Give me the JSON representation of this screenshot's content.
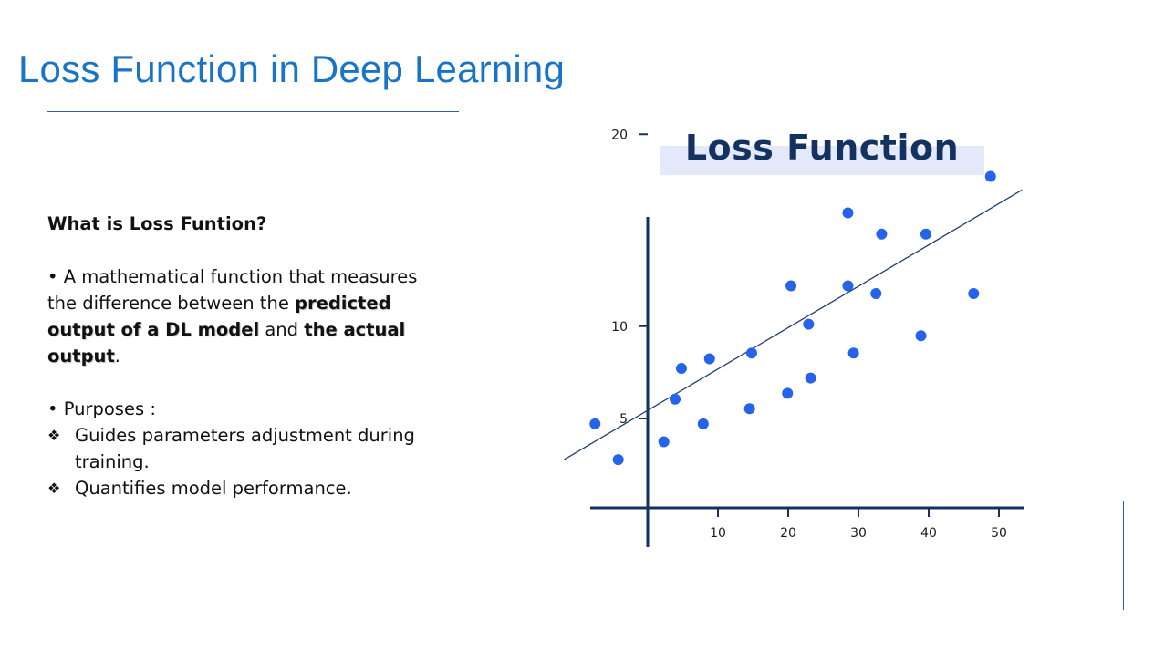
{
  "slide": {
    "title": "Loss Function in Deep Learning"
  },
  "content": {
    "heading": "What is Loss Funtion?",
    "definition": {
      "bullet": "•",
      "part1": " A mathematical function that measures the difference between the ",
      "highlight1": "predicted output of a DL model",
      "part2": " and ",
      "highlight2": "the actual output",
      "part3": "."
    },
    "purposes_label": "• Purposes :",
    "purposes": [
      {
        "marker": "❖",
        "text": " Guides parameters adjustment during training."
      },
      {
        "marker": "❖",
        "text": "Quantifies model performance."
      }
    ]
  },
  "chart_data": {
    "type": "scatter",
    "title": "Loss Function",
    "xlabel": "",
    "ylabel": "",
    "xticks": [
      10,
      20,
      30,
      40,
      50
    ],
    "yticks": [
      5,
      10,
      20
    ],
    "colors": {
      "points": "#2563eb",
      "axes": "#13325f",
      "line": "#1f3f6e"
    },
    "points": [
      {
        "x": -7.5,
        "y": 4.7
      },
      {
        "x": -4.2,
        "y": 2.7
      },
      {
        "x": 2.3,
        "y": 3.7
      },
      {
        "x": 3.9,
        "y": 6.2
      },
      {
        "x": 4.8,
        "y": 7.8
      },
      {
        "x": 8.8,
        "y": 8.3
      },
      {
        "x": 7.9,
        "y": 4.7
      },
      {
        "x": 14.5,
        "y": 5.7
      },
      {
        "x": 14.8,
        "y": 8.6
      },
      {
        "x": 19.9,
        "y": 6.5
      },
      {
        "x": 20.4,
        "y": 12.1
      },
      {
        "x": 22.9,
        "y": 10.1
      },
      {
        "x": 23.2,
        "y": 7.3
      },
      {
        "x": 28.5,
        "y": 12.1
      },
      {
        "x": 28.5,
        "y": 15.9
      },
      {
        "x": 29.3,
        "y": 8.6
      },
      {
        "x": 32.5,
        "y": 11.7
      },
      {
        "x": 33.3,
        "y": 14.8
      },
      {
        "x": 38.9,
        "y": 9.5
      },
      {
        "x": 39.6,
        "y": 14.8
      },
      {
        "x": 46.4,
        "y": 11.7
      },
      {
        "x": 48.8,
        "y": 17.8
      }
    ],
    "trend_line": {
      "x": [
        -11.9,
        53.3
      ],
      "y": [
        2.7,
        17.1
      ]
    }
  }
}
